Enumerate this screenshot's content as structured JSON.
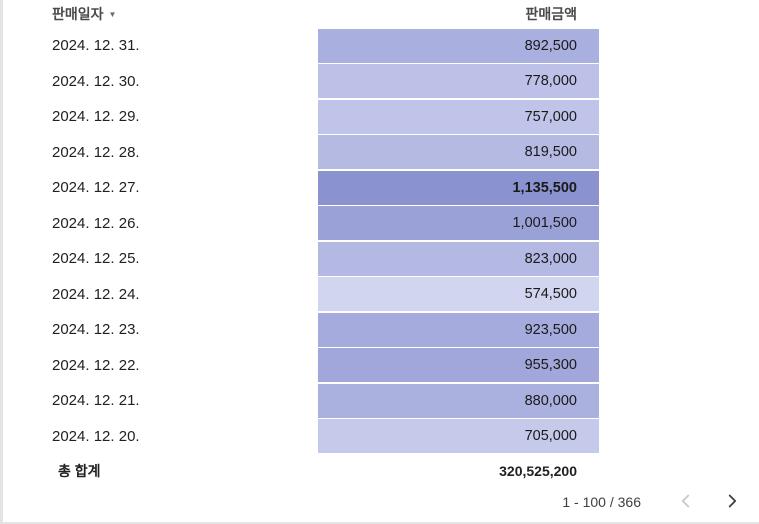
{
  "table": {
    "columns": {
      "date_header": "판매일자",
      "amount_header": "판매금액",
      "sort_icon": "▼"
    },
    "rows": [
      {
        "date": "2024. 12. 31.",
        "amount": "892,500",
        "color": "#a9afde"
      },
      {
        "date": "2024. 12. 30.",
        "amount": "778,000",
        "color": "#bdc1e7"
      },
      {
        "date": "2024. 12. 29.",
        "amount": "757,000",
        "color": "#bfc4e8"
      },
      {
        "date": "2024. 12. 28.",
        "amount": "819,500",
        "color": "#b5bae3"
      },
      {
        "date": "2024. 12. 27.",
        "amount": "1,135,500",
        "color": "#8a92d0",
        "emphasis": true
      },
      {
        "date": "2024. 12. 26.",
        "amount": "1,001,500",
        "color": "#9aa1d7"
      },
      {
        "date": "2024. 12. 25.",
        "amount": "823,000",
        "color": "#b4b9e3"
      },
      {
        "date": "2024. 12. 24.",
        "amount": "574,500",
        "color": "#d2d5f0"
      },
      {
        "date": "2024. 12. 23.",
        "amount": "923,500",
        "color": "#a5abdc"
      },
      {
        "date": "2024. 12. 22.",
        "amount": "955,300",
        "color": "#a1a7da"
      },
      {
        "date": "2024. 12. 21.",
        "amount": "880,000",
        "color": "#abb1df"
      },
      {
        "date": "2024. 12. 20.",
        "amount": "705,000",
        "color": "#c5c9ea"
      }
    ],
    "total": {
      "label": "총 합계",
      "value": "320,525,200"
    }
  },
  "pagination": {
    "range_label": "1 - 100 / 366"
  },
  "colors": {
    "heatmap_light": "#d2d5f0",
    "heatmap_dark": "#8a92d0",
    "header_text": "#4a4a4a",
    "chevron_disabled": "#c9c9c9",
    "chevron_enabled": "#3c4043"
  },
  "chart_data": {
    "type": "table",
    "columns": [
      "판매일자",
      "판매금액"
    ],
    "sort": {
      "column": "판매일자",
      "direction": "desc"
    },
    "rows": [
      [
        "2024. 12. 31.",
        892500
      ],
      [
        "2024. 12. 30.",
        778000
      ],
      [
        "2024. 12. 29.",
        757000
      ],
      [
        "2024. 12. 28.",
        819500
      ],
      [
        "2024. 12. 27.",
        1135500
      ],
      [
        "2024. 12. 26.",
        1001500
      ],
      [
        "2024. 12. 25.",
        823000
      ],
      [
        "2024. 12. 24.",
        574500
      ],
      [
        "2024. 12. 23.",
        923500
      ],
      [
        "2024. 12. 22.",
        955300
      ],
      [
        "2024. 12. 21.",
        880000
      ],
      [
        "2024. 12. 20.",
        705000
      ]
    ],
    "total_row": [
      "총 합계",
      320525200
    ],
    "heatmap": {
      "applied_to": "판매금액",
      "light": "#d2d5f0",
      "dark": "#8a92d0"
    },
    "pagination": {
      "visible_range": "1 - 100",
      "total_rows": 366
    }
  }
}
